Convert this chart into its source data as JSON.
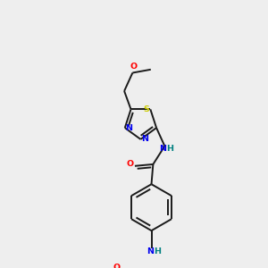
{
  "background_color": "#eeeeee",
  "bond_color": "#1a1a1a",
  "atom_colors": {
    "O": "#ff0000",
    "N": "#0000ee",
    "S": "#cccc00",
    "H": "#008080",
    "C": "#1a1a1a"
  },
  "figsize": [
    3.0,
    3.0
  ],
  "dpi": 100,
  "lw": 1.4,
  "fs": 6.8,
  "fs_small": 6.0
}
